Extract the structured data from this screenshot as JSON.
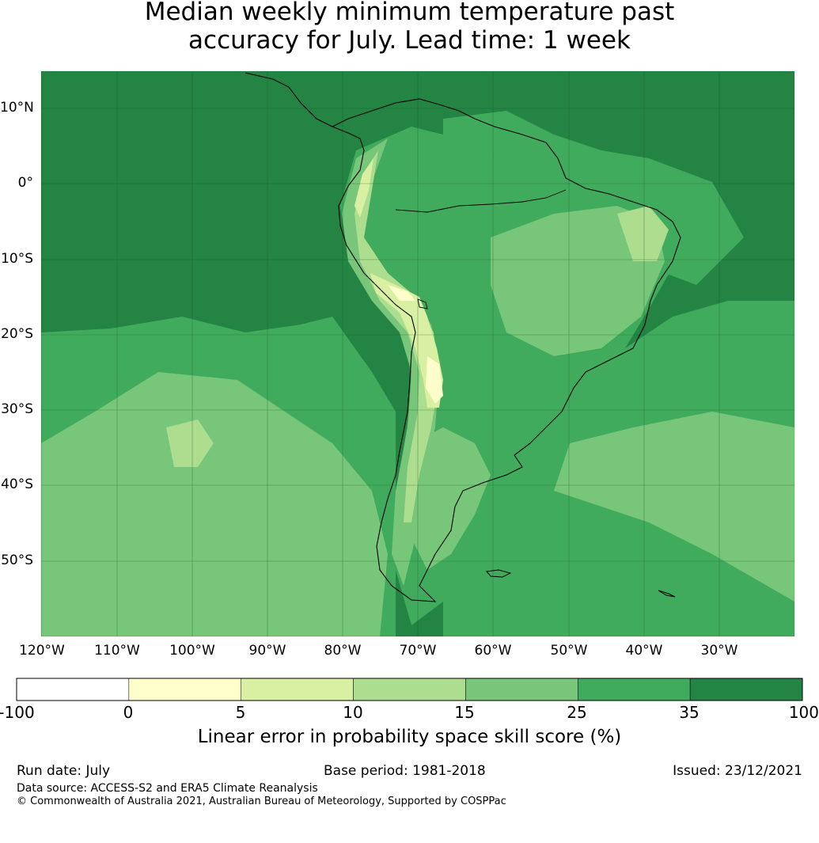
{
  "title_line1": "Median weekly minimum temperature past",
  "title_line2": "accuracy for July. Lead time: 1 week",
  "latitude_labels": [
    "10°N",
    "0°",
    "10°S",
    "20°S",
    "30°S",
    "40°S",
    "50°S"
  ],
  "longitude_labels": [
    "120°W",
    "110°W",
    "100°W",
    "90°W",
    "80°W",
    "70°W",
    "60°W",
    "50°W",
    "40°W",
    "30°W"
  ],
  "colorbar": {
    "ticks": [
      "-100",
      "0",
      "5",
      "10",
      "15",
      "25",
      "35",
      "100"
    ],
    "colors": [
      "#ffffff",
      "#ffffcc",
      "#d9f0a3",
      "#addd8e",
      "#78c679",
      "#41ab5d",
      "#238443"
    ],
    "label": "Linear error in probability space skill score (%)"
  },
  "footer": {
    "run_date": "Run date: July",
    "base_period": "Base period: 1981-2018",
    "issued": "Issued: 23/12/2021",
    "data_source": "Data source: ACCESS-S2 and ERA5 Climate Reanalysis",
    "copyright": "© Commonwealth of Australia 2021, Australian Bureau of Meteorology, Supported by COSPPac"
  }
}
